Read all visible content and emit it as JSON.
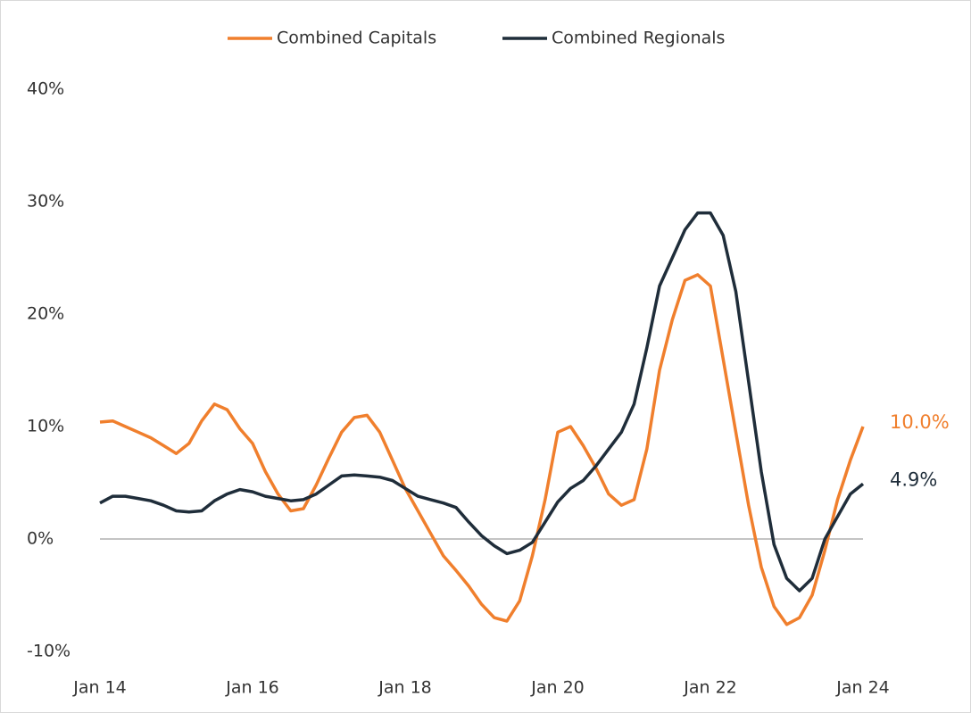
{
  "chart_data": {
    "type": "line",
    "categories": [
      "Jan 14",
      null,
      null,
      null,
      null,
      null,
      null,
      null,
      null,
      null,
      null,
      null,
      "Jan 16",
      null,
      null,
      null,
      null,
      null,
      null,
      null,
      null,
      null,
      null,
      null,
      "Jan 18",
      null,
      null,
      null,
      null,
      null,
      null,
      null,
      null,
      null,
      null,
      null,
      "Jan 20",
      null,
      null,
      null,
      null,
      null,
      null,
      null,
      null,
      null,
      null,
      null,
      "Jan 22",
      null,
      null,
      null,
      null,
      null,
      null,
      null,
      null,
      null,
      null,
      null,
      "Jan 24"
    ],
    "series": [
      {
        "name": "Combined Capitals",
        "color": "#f07f2d",
        "end_label": "10.0%",
        "values": [
          10.4,
          10.5,
          10.0,
          9.5,
          9.0,
          8.3,
          7.6,
          8.5,
          10.5,
          12.0,
          11.5,
          9.8,
          8.5,
          6.0,
          4.0,
          2.5,
          2.7,
          4.8,
          7.2,
          9.5,
          10.8,
          11.0,
          9.5,
          7.0,
          4.5,
          2.5,
          0.5,
          -1.5,
          -2.8,
          -4.2,
          -5.8,
          -7.0,
          -7.3,
          -5.5,
          -1.5,
          3.5,
          9.5,
          10.0,
          8.3,
          6.3,
          4.0,
          3.0,
          3.5,
          8.0,
          15.0,
          19.5,
          23.0,
          23.5,
          22.5,
          16.0,
          9.5,
          3.0,
          -2.5,
          -6.0,
          -7.6,
          -7.0,
          -5.0,
          -1.0,
          3.5,
          7.0,
          10.0
        ]
      },
      {
        "name": "Combined Regionals",
        "color": "#1f2d3a",
        "end_label": "4.9%",
        "values": [
          3.2,
          3.8,
          3.8,
          3.6,
          3.4,
          3.0,
          2.5,
          2.4,
          2.5,
          3.4,
          4.0,
          4.4,
          4.2,
          3.8,
          3.6,
          3.4,
          3.5,
          4.0,
          4.8,
          5.6,
          5.7,
          5.6,
          5.5,
          5.2,
          4.5,
          3.8,
          3.5,
          3.2,
          2.8,
          1.5,
          0.3,
          -0.6,
          -1.3,
          -1.0,
          -0.3,
          1.5,
          3.3,
          4.5,
          5.2,
          6.5,
          8.0,
          9.5,
          12.0,
          17.0,
          22.5,
          25.0,
          27.5,
          29.0,
          29.0,
          27.0,
          22.0,
          14.0,
          6.0,
          -0.5,
          -3.5,
          -4.6,
          -3.5,
          0.0,
          2.0,
          4.0,
          4.9
        ]
      }
    ],
    "ylim": [
      -10,
      40
    ],
    "yticks": [
      {
        "value": -10,
        "label": "-10%"
      },
      {
        "value": 0,
        "label": "0%"
      },
      {
        "value": 10,
        "label": "10%"
      },
      {
        "value": 20,
        "label": "20%"
      },
      {
        "value": 30,
        "label": "30%"
      },
      {
        "value": 40,
        "label": "40%"
      }
    ],
    "zero_line": true,
    "grid": false,
    "legend": "top"
  }
}
